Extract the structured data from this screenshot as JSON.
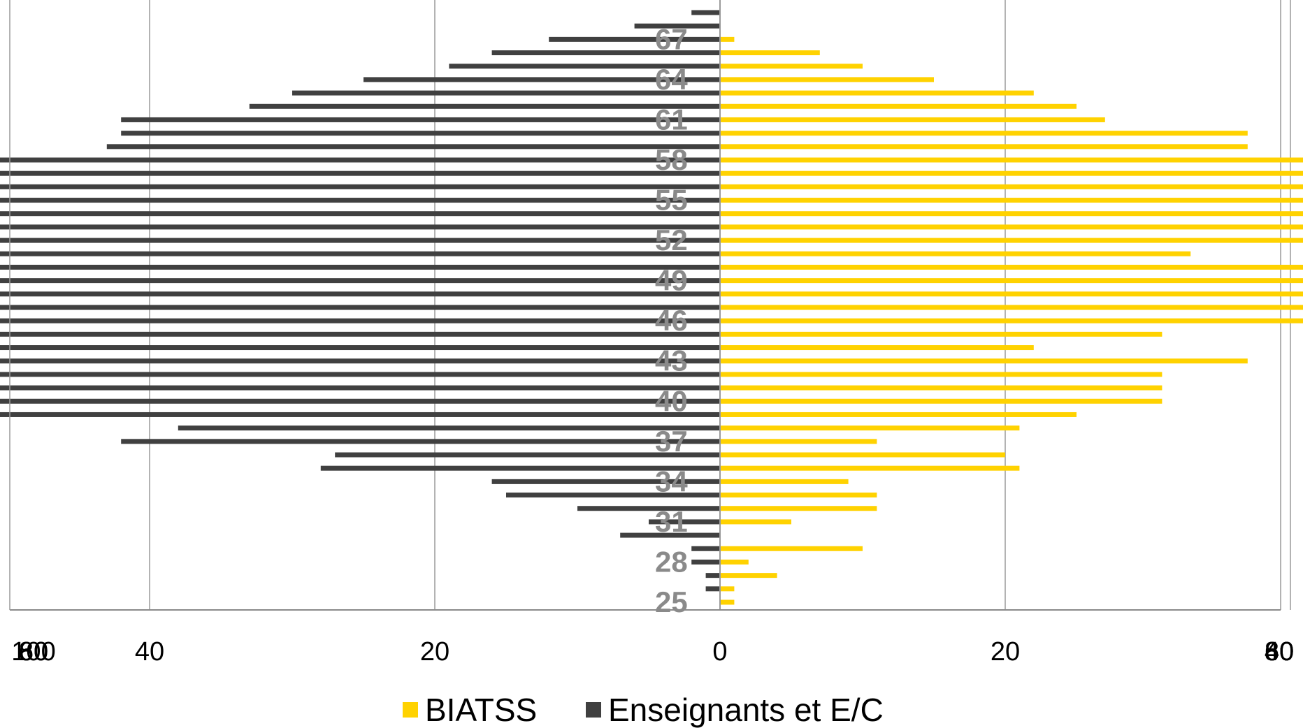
{
  "chart_data": {
    "type": "bar",
    "orientation": "horizontal-pyramid",
    "title": "",
    "xlabel": "",
    "ylabel": "",
    "x_range": [
      -100,
      80
    ],
    "x_ticks": [
      -100,
      -80,
      -60,
      -40,
      -20,
      0,
      20,
      40,
      60,
      80
    ],
    "x_tick_labels": [
      "100",
      "80",
      "60",
      "40",
      "20",
      "0",
      "20",
      "40",
      "60",
      "80"
    ],
    "grid": "vertical",
    "legend_position": "bottom",
    "age_labels_shown": [
      "67",
      "64",
      "61",
      "58",
      "55",
      "52",
      "49",
      "46",
      "43",
      "40",
      "37",
      "34",
      "31",
      "28",
      "25"
    ],
    "categories": [
      25,
      26,
      27,
      28,
      29,
      30,
      31,
      32,
      33,
      34,
      35,
      36,
      37,
      38,
      39,
      40,
      41,
      42,
      43,
      44,
      45,
      46,
      47,
      48,
      49,
      50,
      51,
      52,
      53,
      54,
      55,
      56,
      57,
      58,
      59,
      60,
      61,
      62,
      63,
      64,
      65,
      66,
      67,
      68,
      69
    ],
    "series": [
      {
        "name": "BIATSS",
        "color": "#ffd200",
        "side": "right",
        "values": [
          1,
          1,
          4,
          2,
          10,
          0,
          5,
          11,
          11,
          9,
          21,
          20,
          11,
          21,
          25,
          31,
          31,
          31,
          37,
          22,
          31,
          41,
          46,
          52,
          65,
          67,
          33,
          53,
          56,
          50,
          50,
          45,
          43,
          43,
          37,
          37,
          27,
          25,
          22,
          15,
          10,
          7,
          1,
          0,
          0
        ]
      },
      {
        "name": "Enseignants et E/C",
        "color": "#404040",
        "side": "left",
        "values": [
          0,
          1,
          1,
          2,
          2,
          7,
          5,
          10,
          15,
          16,
          28,
          27,
          42,
          38,
          52,
          56,
          58,
          68,
          61,
          67,
          60,
          59,
          57,
          74,
          85,
          64,
          68,
          56,
          74,
          63,
          66,
          66,
          67,
          54,
          43,
          42,
          42,
          33,
          30,
          25,
          19,
          16,
          12,
          6,
          2
        ]
      }
    ]
  }
}
